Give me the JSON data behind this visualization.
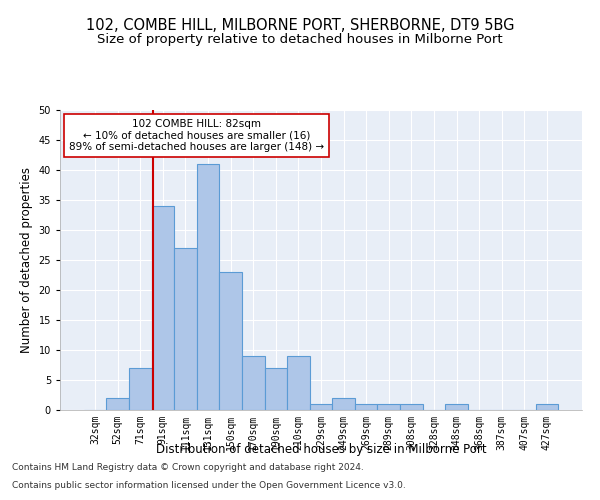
{
  "title": "102, COMBE HILL, MILBORNE PORT, SHERBORNE, DT9 5BG",
  "subtitle": "Size of property relative to detached houses in Milborne Port",
  "xlabel": "Distribution of detached houses by size in Milborne Port",
  "ylabel": "Number of detached properties",
  "footnote1": "Contains HM Land Registry data © Crown copyright and database right 2024.",
  "footnote2": "Contains public sector information licensed under the Open Government Licence v3.0.",
  "bin_labels": [
    "32sqm",
    "52sqm",
    "71sqm",
    "91sqm",
    "111sqm",
    "131sqm",
    "150sqm",
    "170sqm",
    "190sqm",
    "210sqm",
    "229sqm",
    "249sqm",
    "269sqm",
    "289sqm",
    "308sqm",
    "328sqm",
    "348sqm",
    "368sqm",
    "387sqm",
    "407sqm",
    "427sqm"
  ],
  "bar_values": [
    0,
    2,
    7,
    34,
    27,
    41,
    23,
    9,
    7,
    9,
    1,
    2,
    1,
    1,
    1,
    0,
    1,
    0,
    0,
    0,
    1
  ],
  "bar_color": "#aec6e8",
  "bar_edge_color": "#5b9bd5",
  "property_label": "102 COMBE HILL: 82sqm",
  "annotation_line1": "← 10% of detached houses are smaller (16)",
  "annotation_line2": "89% of semi-detached houses are larger (148) →",
  "red_line_color": "#cc0000",
  "annotation_box_color": "#ffffff",
  "annotation_box_edge": "#cc0000",
  "red_line_x": 2.55,
  "ylim": [
    0,
    50
  ],
  "yticks": [
    0,
    5,
    10,
    15,
    20,
    25,
    30,
    35,
    40,
    45,
    50
  ],
  "background_color": "#e8eef7",
  "title_fontsize": 10.5,
  "subtitle_fontsize": 9.5,
  "xlabel_fontsize": 8.5,
  "ylabel_fontsize": 8.5,
  "tick_fontsize": 7,
  "annotation_fontsize": 7.5,
  "footnote_fontsize": 6.5
}
